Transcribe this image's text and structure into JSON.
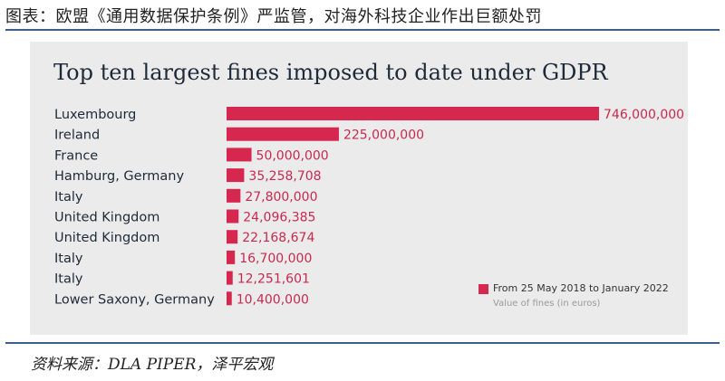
{
  "figure_title": "图表：欧盟《通用数据保护条例》严监管，对海外科技企业作出巨额处罚",
  "source": "资料来源：DLA PIPER，泽平宏观",
  "colors": {
    "bar": "#d6284f",
    "value_text": "#c8294f",
    "panel_bg": "#ebebeb",
    "rule": "#3a5f8a"
  },
  "chart_data": {
    "type": "bar",
    "orientation": "horizontal",
    "title": "Top ten largest fines imposed to date under GDPR",
    "categories": [
      "Luxembourg",
      "Ireland",
      "France",
      "Hamburg, Germany",
      "Italy",
      "United Kingdom",
      "United Kingdom",
      "Italy",
      "Italy",
      "Lower Saxony, Germany"
    ],
    "values": [
      746000000,
      225000000,
      50000000,
      35258708,
      27800000,
      24096385,
      22168674,
      16700000,
      12251601,
      10400000
    ],
    "value_labels": [
      "746,000,000",
      "225,000,000",
      "50,000,000",
      "35,258,708",
      "27,800,000",
      "24,096,385",
      "22,168,674",
      "16,700,000",
      "12,251,601",
      "10,400,000"
    ],
    "legend": {
      "label": "From 25 May 2018 to January 2022",
      "sublabel": "Value of fines (in euros)",
      "placement": "bottom-right"
    },
    "xlim": [
      0,
      746000000
    ],
    "xlabel": "",
    "ylabel": ""
  }
}
